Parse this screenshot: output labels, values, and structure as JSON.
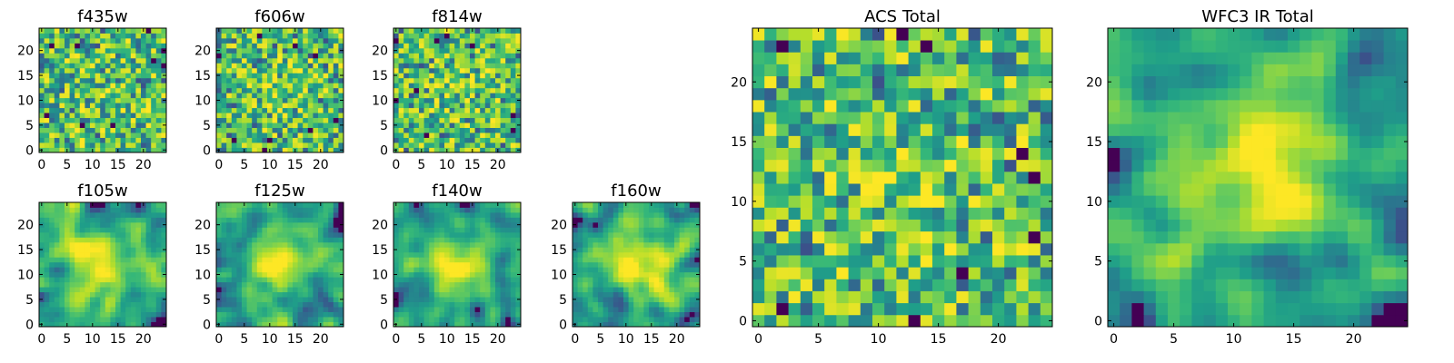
{
  "figure": {
    "colormap": "viridis",
    "colors": {
      "low": "#440154",
      "mid": "#21918c",
      "high": "#fde725",
      "background": "#ffffff",
      "axis": "#000000"
    }
  },
  "chart_data": [
    {
      "type": "heatmap",
      "id": "f435w",
      "title": "f435w",
      "grid_size": 25,
      "x_ticks": [
        0,
        5,
        10,
        15,
        20
      ],
      "y_ticks": [
        0,
        5,
        10,
        15,
        20
      ],
      "xlim": [
        -0.5,
        24.5
      ],
      "ylim": [
        -0.5,
        24.5
      ],
      "texture": "fine noise",
      "center_brightness": 0.05,
      "seed": 11
    },
    {
      "type": "heatmap",
      "id": "f606w",
      "title": "f606w",
      "grid_size": 25,
      "x_ticks": [
        0,
        5,
        10,
        15,
        20
      ],
      "y_ticks": [
        0,
        5,
        10,
        15,
        20
      ],
      "xlim": [
        -0.5,
        24.5
      ],
      "ylim": [
        -0.5,
        24.5
      ],
      "texture": "fine noise",
      "center_brightness": 0.15,
      "seed": 23
    },
    {
      "type": "heatmap",
      "id": "f814w",
      "title": "f814w",
      "grid_size": 25,
      "x_ticks": [
        0,
        5,
        10,
        15,
        20
      ],
      "y_ticks": [
        0,
        5,
        10,
        15,
        20
      ],
      "xlim": [
        -0.5,
        24.5
      ],
      "ylim": [
        -0.5,
        24.5
      ],
      "texture": "fine noise",
      "center_brightness": 0.1,
      "seed": 37
    },
    {
      "type": "heatmap",
      "id": "f105w",
      "title": "f105w",
      "grid_size": 25,
      "x_ticks": [
        0,
        5,
        10,
        15,
        20
      ],
      "y_ticks": [
        0,
        5,
        10,
        15,
        20
      ],
      "xlim": [
        -0.5,
        24.5
      ],
      "ylim": [
        -0.5,
        24.5
      ],
      "texture": "smooth",
      "center_brightness": 0.3,
      "seed": 41
    },
    {
      "type": "heatmap",
      "id": "f125w",
      "title": "f125w",
      "grid_size": 25,
      "x_ticks": [
        0,
        5,
        10,
        15,
        20
      ],
      "y_ticks": [
        0,
        5,
        10,
        15,
        20
      ],
      "xlim": [
        -0.5,
        24.5
      ],
      "ylim": [
        -0.5,
        24.5
      ],
      "texture": "smooth",
      "center_brightness": 0.3,
      "seed": 53
    },
    {
      "type": "heatmap",
      "id": "f140w",
      "title": "f140w",
      "grid_size": 25,
      "x_ticks": [
        0,
        5,
        10,
        15,
        20
      ],
      "y_ticks": [
        0,
        5,
        10,
        15,
        20
      ],
      "xlim": [
        -0.5,
        24.5
      ],
      "ylim": [
        -0.5,
        24.5
      ],
      "texture": "smooth",
      "center_brightness": 0.3,
      "seed": 67
    },
    {
      "type": "heatmap",
      "id": "f160w",
      "title": "f160w",
      "grid_size": 25,
      "x_ticks": [
        0,
        5,
        10,
        15,
        20
      ],
      "y_ticks": [
        0,
        5,
        10,
        15,
        20
      ],
      "xlim": [
        -0.5,
        24.5
      ],
      "ylim": [
        -0.5,
        24.5
      ],
      "texture": "smooth",
      "center_brightness": 0.35,
      "seed": 79
    },
    {
      "type": "heatmap",
      "id": "acs_total",
      "title": "ACS Total",
      "grid_size": 25,
      "x_ticks": [
        0,
        5,
        10,
        15,
        20
      ],
      "y_ticks": [
        0,
        5,
        10,
        15,
        20
      ],
      "xlim": [
        -0.5,
        24.5
      ],
      "ylim": [
        -0.5,
        24.5
      ],
      "texture": "fine noise",
      "center_brightness": 0.15,
      "seed": 97
    },
    {
      "type": "heatmap",
      "id": "wfc3_ir_total",
      "title": "WFC3 IR Total",
      "grid_size": 25,
      "x_ticks": [
        0,
        5,
        10,
        15,
        20
      ],
      "y_ticks": [
        0,
        5,
        10,
        15,
        20
      ],
      "xlim": [
        -0.5,
        24.5
      ],
      "ylim": [
        -0.5,
        24.5
      ],
      "texture": "smooth",
      "center_brightness": 0.35,
      "seed": 131
    }
  ]
}
